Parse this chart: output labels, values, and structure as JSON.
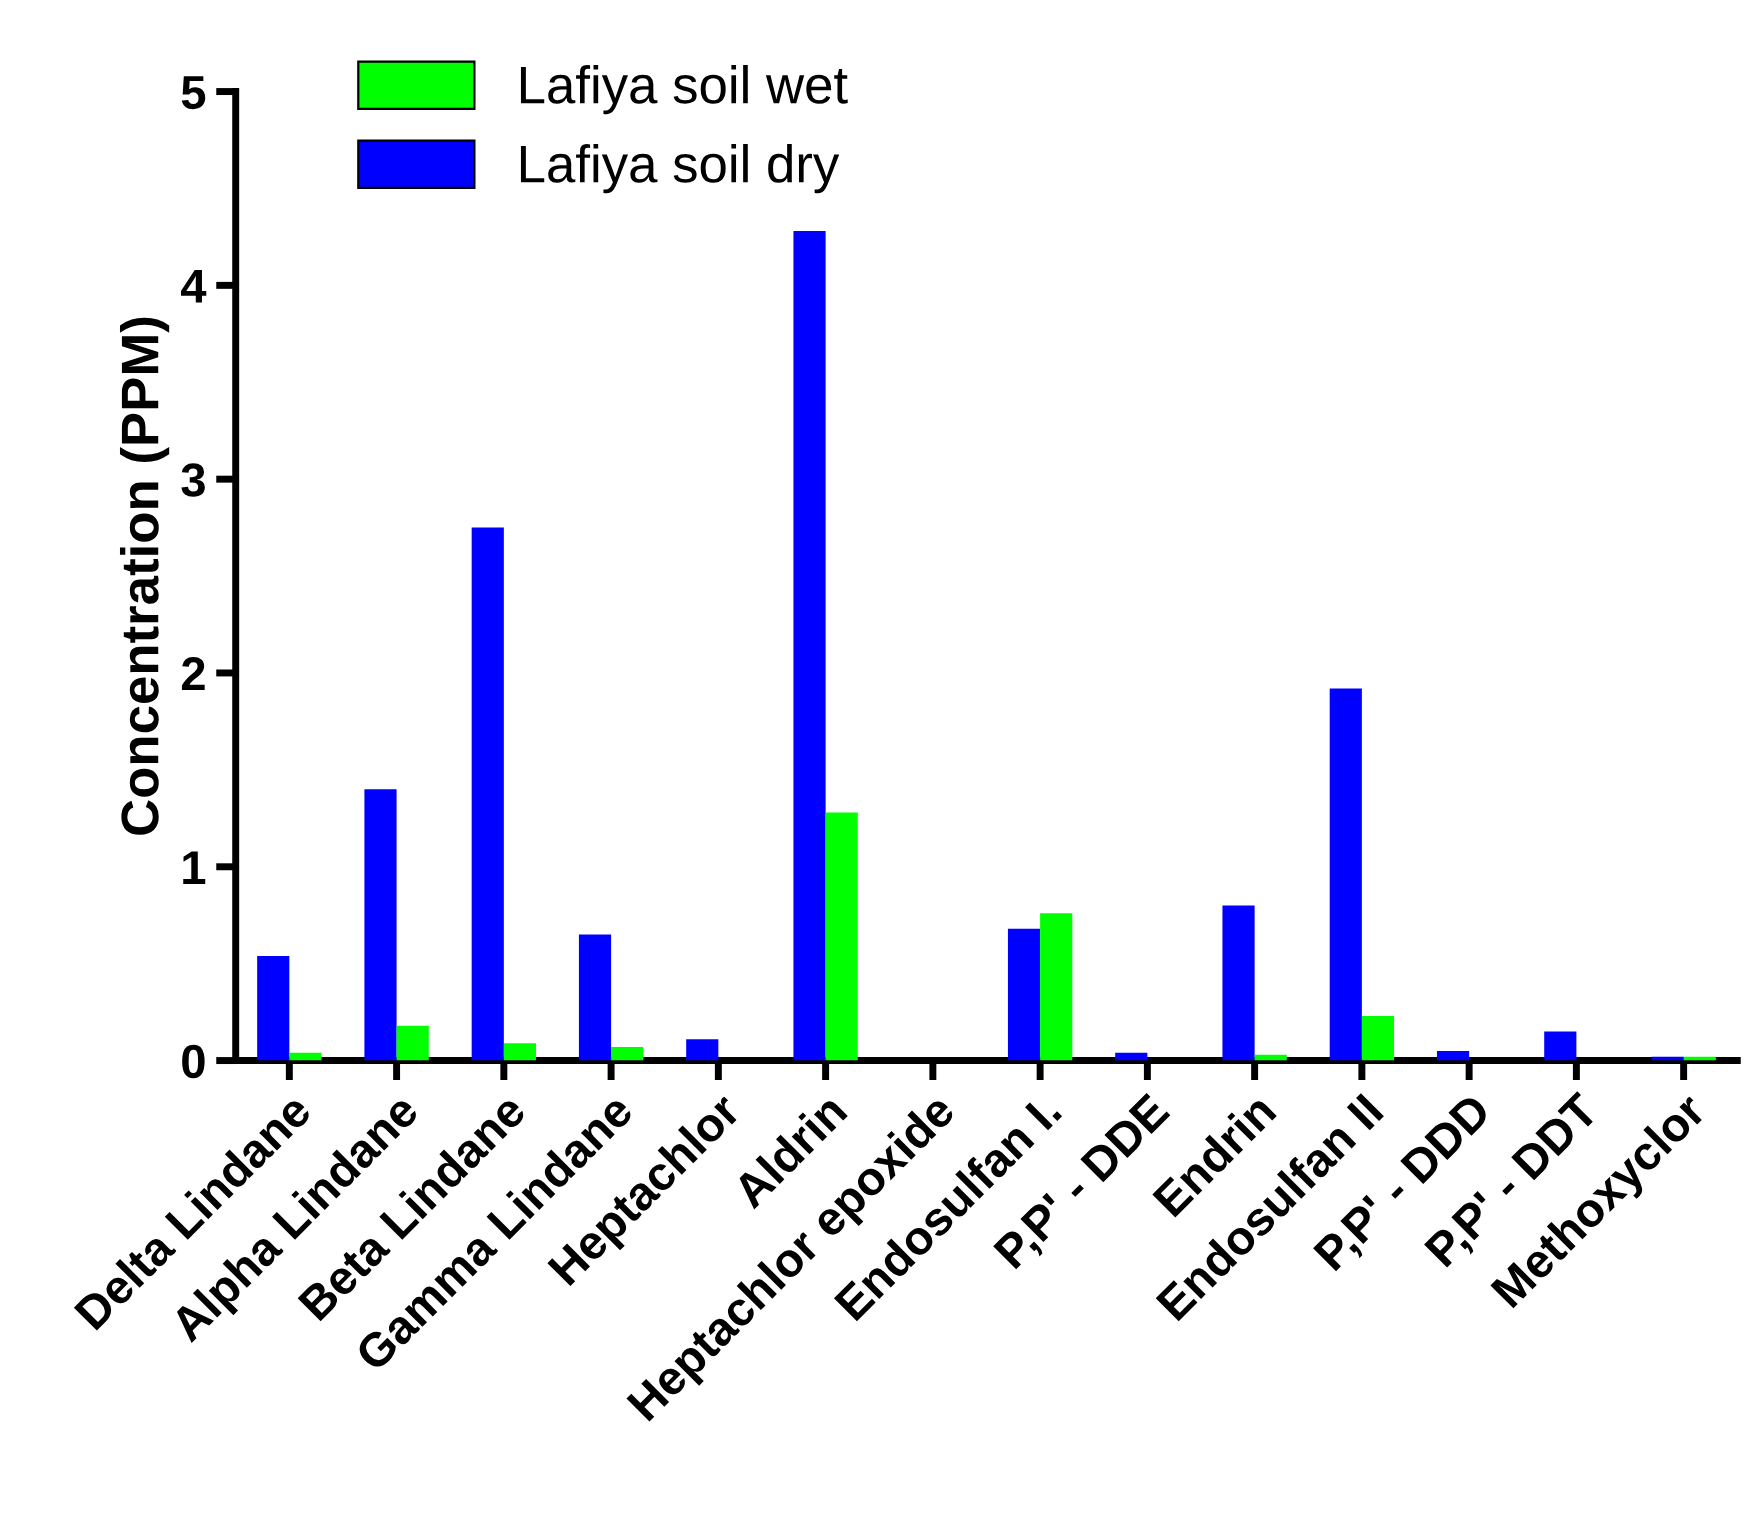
{
  "chart_data": {
    "type": "bar",
    "ylabel": "Concentration (PPM)",
    "categories": [
      "Delta Lindane",
      "Alpha Lindane",
      "Beta Lindane",
      "Gamma Lindane",
      "Heptachlor",
      "Aldrin",
      "Heptachlor epoxide",
      "Endosulfan I.",
      "P,P' - DDE",
      "Endrin",
      "Endosulfan II",
      "P,P' - DDD",
      "P,P' - DDT",
      "Methoxyclor"
    ],
    "series": [
      {
        "name": "Lafiya soil dry",
        "color": "#0000ff",
        "values": [
          0.54,
          1.4,
          2.75,
          0.65,
          0.11,
          4.28,
          0,
          0.68,
          0.04,
          0.8,
          1.92,
          0.05,
          0.15,
          0.02
        ]
      },
      {
        "name": "Lafiya soil wet",
        "color": "#00ff00",
        "values": [
          0.04,
          0.18,
          0.09,
          0.07,
          0,
          1.28,
          0,
          0.76,
          0,
          0.03,
          0.23,
          0,
          0,
          0.02
        ]
      }
    ],
    "ylim": [
      0,
      5
    ],
    "yticks": [
      0,
      1,
      2,
      3,
      4,
      5
    ],
    "grid": false,
    "legend": "top left"
  }
}
